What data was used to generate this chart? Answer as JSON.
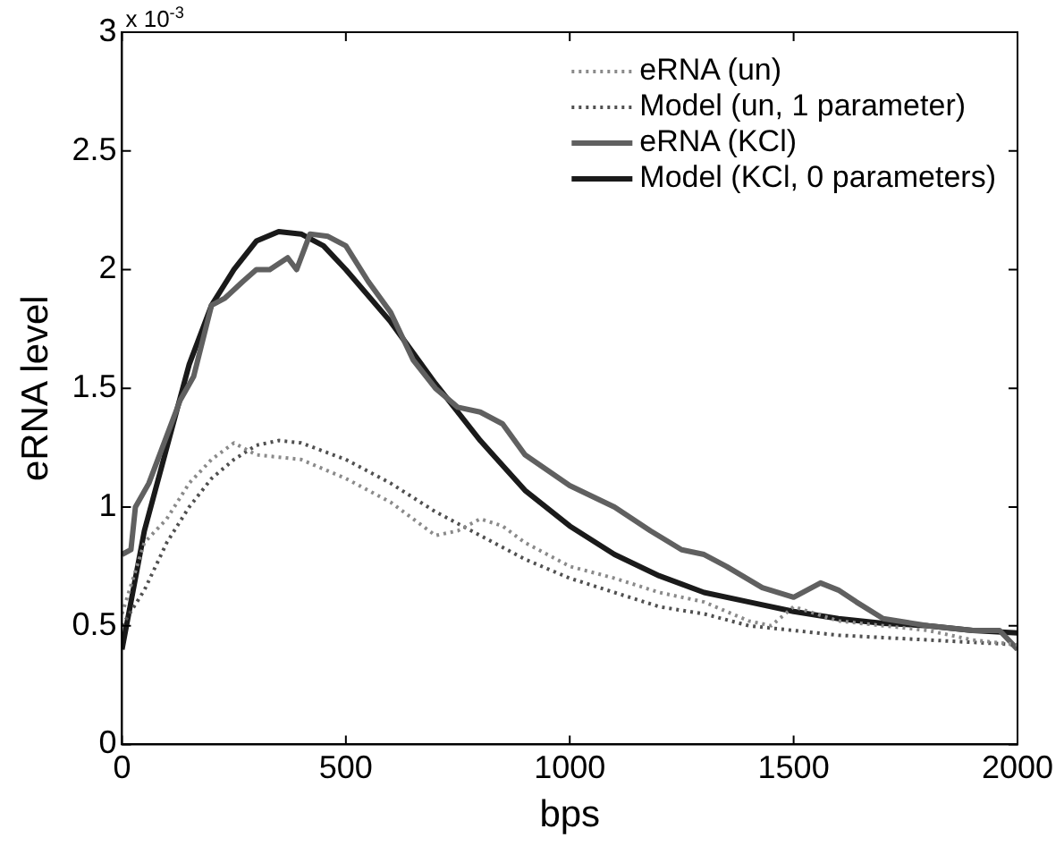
{
  "chart_data": {
    "type": "line",
    "xlabel": "bps",
    "ylabel": "eRNA level",
    "annotations": [
      "x 10$^{-3}$"
    ],
    "xlim": [
      0,
      2000
    ],
    "xticks": [
      0,
      500,
      1000,
      1500,
      2000
    ],
    "ylim": [
      0,
      3
    ],
    "yticks": [
      0,
      0.5,
      1,
      1.5,
      2,
      2.5,
      3
    ],
    "grid": false,
    "legend": "top right",
    "marker": "none",
    "series": [
      {
        "name": "eRNA (un)",
        "color": "#8a8a8a",
        "line_style": "dotted",
        "x": [
          0,
          50,
          100,
          150,
          200,
          250,
          300,
          400,
          500,
          600,
          700,
          750,
          800,
          850,
          900,
          1000,
          1100,
          1200,
          1300,
          1400,
          1450,
          1500,
          1600,
          1700,
          1800,
          1900,
          2000
        ],
        "values": [
          0.55,
          0.85,
          0.95,
          1.1,
          1.2,
          1.27,
          1.22,
          1.2,
          1.12,
          1.02,
          0.88,
          0.9,
          0.95,
          0.92,
          0.85,
          0.75,
          0.7,
          0.64,
          0.6,
          0.52,
          0.5,
          0.58,
          0.52,
          0.5,
          0.48,
          0.44,
          0.42
        ]
      },
      {
        "name": "Model (un, 1 parameter)",
        "color": "#505050",
        "line_style": "dotted",
        "x": [
          0,
          50,
          100,
          150,
          200,
          250,
          300,
          350,
          400,
          500,
          600,
          700,
          800,
          900,
          1000,
          1100,
          1200,
          1300,
          1400,
          1500,
          1600,
          1700,
          1800,
          1900,
          2000
        ],
        "values": [
          0.5,
          0.65,
          0.85,
          1.0,
          1.12,
          1.2,
          1.26,
          1.28,
          1.27,
          1.2,
          1.1,
          0.98,
          0.88,
          0.78,
          0.7,
          0.64,
          0.58,
          0.55,
          0.5,
          0.48,
          0.46,
          0.45,
          0.44,
          0.43,
          0.42
        ]
      },
      {
        "name": "eRNA (KCl)",
        "color": "#606060",
        "line_style": "solid",
        "x": [
          0,
          20,
          30,
          60,
          100,
          130,
          160,
          200,
          230,
          270,
          300,
          330,
          370,
          390,
          420,
          460,
          500,
          550,
          600,
          650,
          700,
          750,
          800,
          850,
          900,
          1000,
          1100,
          1180,
          1250,
          1300,
          1350,
          1430,
          1500,
          1560,
          1600,
          1640,
          1700,
          1800,
          1900,
          1960,
          2000
        ],
        "values": [
          0.8,
          0.82,
          1.0,
          1.1,
          1.3,
          1.45,
          1.55,
          1.85,
          1.88,
          1.95,
          2.0,
          2.0,
          2.05,
          2.0,
          2.15,
          2.14,
          2.1,
          1.95,
          1.82,
          1.62,
          1.5,
          1.42,
          1.4,
          1.35,
          1.22,
          1.09,
          1.0,
          0.9,
          0.82,
          0.8,
          0.75,
          0.66,
          0.62,
          0.68,
          0.65,
          0.6,
          0.53,
          0.5,
          0.48,
          0.48,
          0.4
        ]
      },
      {
        "name": "Model (KCl, 0 parameters)",
        "color": "#1a1a1a",
        "line_style": "solid",
        "x": [
          0,
          50,
          100,
          150,
          200,
          250,
          300,
          350,
          400,
          450,
          500,
          600,
          700,
          800,
          900,
          1000,
          1100,
          1200,
          1300,
          1400,
          1500,
          1600,
          1700,
          1800,
          1900,
          2000
        ],
        "values": [
          0.4,
          0.9,
          1.25,
          1.6,
          1.85,
          2.0,
          2.12,
          2.16,
          2.15,
          2.1,
          2.0,
          1.78,
          1.52,
          1.28,
          1.07,
          0.92,
          0.8,
          0.71,
          0.64,
          0.6,
          0.56,
          0.53,
          0.51,
          0.5,
          0.48,
          0.47
        ]
      }
    ]
  }
}
